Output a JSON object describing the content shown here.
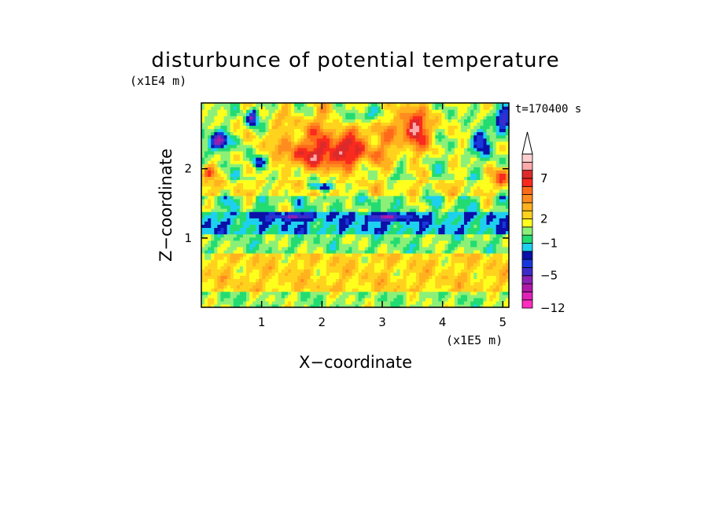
{
  "chart_data": {
    "type": "heatmap",
    "title": "disturbunce of potential temperature",
    "time_label": "t=170400 s",
    "xlabel": "X−coordinate",
    "ylabel": "Z−coordinate",
    "x_unit": "(x1E5 m)",
    "y_unit": "(x1E4 m)",
    "xlim": [
      0.0,
      5.1
    ],
    "ylim": [
      0.0,
      2.95
    ],
    "x_ticks": [
      {
        "value": 1,
        "label": "1"
      },
      {
        "value": 2,
        "label": "2"
      },
      {
        "value": 3,
        "label": "3"
      },
      {
        "value": 4,
        "label": "4"
      },
      {
        "value": 5,
        "label": "5"
      }
    ],
    "y_ticks": [
      {
        "value": 1,
        "label": "1"
      },
      {
        "value": 2,
        "label": "2"
      }
    ],
    "colorbar": {
      "levels": [
        -12,
        -10,
        -8,
        -6,
        -5,
        -4,
        -3,
        -2,
        -1,
        0,
        1,
        2,
        3,
        4,
        5,
        6,
        7,
        8,
        9,
        10
      ],
      "colors": [
        "#ff2ec0",
        "#e022b8",
        "#b01aa8",
        "#8c22b4",
        "#3c2cc8",
        "#1838dc",
        "#0a10a8",
        "#1ed0f0",
        "#22dc72",
        "#8cf078",
        "#ffff1e",
        "#ffd21e",
        "#ffb21e",
        "#ff8c1e",
        "#ff6a1a",
        "#fa2a1e",
        "#dc2a2a",
        "#ffaaaa",
        "#ffd0d0"
      ],
      "tick_labels": [
        {
          "value": -12,
          "label": "−12"
        },
        {
          "value": -5,
          "label": "−5"
        },
        {
          "value": -1,
          "label": "−1"
        },
        {
          "value": 2,
          "label": "2"
        },
        {
          "value": 7,
          "label": "7"
        }
      ],
      "extend": "max"
    },
    "field_features": {
      "bands": [
        {
          "z_range": [
            0.0,
            0.22
          ],
          "value": 0.6
        },
        {
          "z_range": [
            0.22,
            0.8
          ],
          "value": 2.4
        },
        {
          "z_range": [
            0.8,
            1.05
          ],
          "value": 0.4
        },
        {
          "z_range": [
            1.05,
            1.4
          ],
          "value": -1.5
        },
        {
          "z_range": [
            1.4,
            1.6
          ],
          "value": 0.2
        },
        {
          "z_range": [
            1.6,
            1.85
          ],
          "value": 1.8
        },
        {
          "z_range": [
            1.85,
            2.95
          ],
          "value": 0.8
        }
      ],
      "blobs": [
        {
          "x": 2.1,
          "z": 2.2,
          "value": 5.8,
          "rx": 0.8,
          "rz": 0.22
        },
        {
          "x": 2.4,
          "z": 2.55,
          "value": 3.2,
          "rx": 1.2,
          "rz": 0.35
        },
        {
          "x": 2.6,
          "z": 2.75,
          "value": -4.6,
          "rx": 0.3,
          "rz": 0.13
        },
        {
          "x": 3.55,
          "z": 2.6,
          "value": 6.5,
          "rx": 0.2,
          "rz": 0.3
        },
        {
          "x": 0.3,
          "z": 2.4,
          "value": -7.5,
          "rx": 0.15,
          "rz": 0.13
        },
        {
          "x": 0.85,
          "z": 2.75,
          "value": -5.5,
          "rx": 0.1,
          "rz": 0.14
        },
        {
          "x": 0.95,
          "z": 2.1,
          "value": -4.8,
          "rx": 0.14,
          "rz": 0.09
        },
        {
          "x": 4.65,
          "z": 2.4,
          "value": -4.8,
          "rx": 0.15,
          "rz": 0.18
        },
        {
          "x": 5.0,
          "z": 2.75,
          "value": -6.0,
          "rx": 0.13,
          "rz": 0.15
        },
        {
          "x": 5.0,
          "z": 1.9,
          "value": 5.0,
          "rx": 0.15,
          "rz": 0.12
        },
        {
          "x": 0.12,
          "z": 1.95,
          "value": 5.0,
          "rx": 0.12,
          "rz": 0.1
        },
        {
          "x": 1.5,
          "z": 1.32,
          "value": -4.5,
          "rx": 0.35,
          "rz": 0.05
        },
        {
          "x": 3.05,
          "z": 1.3,
          "value": -4.5,
          "rx": 0.35,
          "rz": 0.05
        },
        {
          "x": 2.0,
          "z": 1.75,
          "value": -4.0,
          "rx": 0.25,
          "rz": 0.06
        }
      ]
    }
  }
}
